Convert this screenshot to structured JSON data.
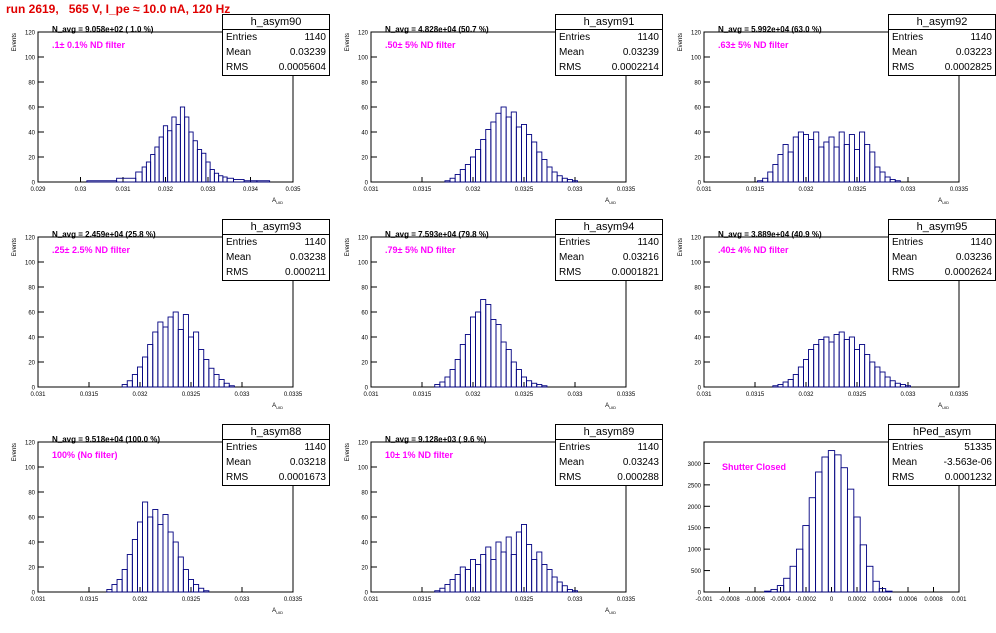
{
  "run_title": "run 2619,   565 V, I_pe ≈ 10.0 nA, 120 Hz",
  "colors": {
    "title": "#e00000",
    "histogram": "#000080",
    "annotation": "#ff00ff",
    "axis": "#000000"
  },
  "stat_labels": {
    "entries": "Entries",
    "mean": "Mean",
    "rms": "RMS"
  },
  "chart_data": [
    {
      "type": "histogram",
      "name": "h_asym90",
      "navg": "N_avg = 9.058e+02 ( 1.0 %)",
      "filter": ".1± 0.1% ND filter",
      "stats": {
        "entries": "1140",
        "mean": "0.03239",
        "rms": "0.0005604"
      },
      "ylabel": "Events",
      "xlabel": "A_UID",
      "xlim": [
        0.029,
        0.035
      ],
      "ylim": [
        0,
        120
      ],
      "xticks": [
        "0.029",
        "0.03",
        "0.031",
        "0.032",
        "0.033",
        "0.034",
        "0.035"
      ],
      "yticks": [
        "0",
        "20",
        "40",
        "60",
        "80",
        "100",
        "120"
      ],
      "bins": [
        0.0305,
        0.0312,
        0.0314,
        0.0315,
        0.0316,
        0.0317,
        0.0318,
        0.0319,
        0.032,
        0.0321,
        0.0322,
        0.0323,
        0.0324,
        0.0325,
        0.0326,
        0.0327,
        0.0328,
        0.0329,
        0.033,
        0.0331,
        0.0332,
        0.0333,
        0.0334,
        0.0335,
        0.0337,
        0.034,
        0.0343
      ],
      "counts": [
        1,
        3,
        8,
        12,
        16,
        22,
        28,
        36,
        45,
        41,
        52,
        46,
        60,
        52,
        40,
        33,
        26,
        23,
        16,
        10,
        7,
        5,
        4,
        3,
        2,
        1,
        1
      ]
    },
    {
      "type": "histogram",
      "name": "h_asym91",
      "navg": "N_avg = 4.828e+04 (50.7 %)",
      "filter": ".50± 5% ND filter",
      "stats": {
        "entries": "1140",
        "mean": "0.03239",
        "rms": "0.0002214"
      },
      "ylabel": "Events",
      "xlabel": "A_UID",
      "xlim": [
        0.031,
        0.0335
      ],
      "ylim": [
        0,
        120
      ],
      "xticks": [
        "0.031",
        "0.0315",
        "0.032",
        "0.0325",
        "0.033",
        "0.0335"
      ],
      "yticks": [
        "0",
        "20",
        "40",
        "60",
        "80",
        "100",
        "120"
      ],
      "bins": [
        0.03175,
        0.0318,
        0.03185,
        0.0319,
        0.03195,
        0.032,
        0.03205,
        0.0321,
        0.03215,
        0.0322,
        0.03225,
        0.0323,
        0.03235,
        0.0324,
        0.03245,
        0.0325,
        0.03255,
        0.0326,
        0.03265,
        0.0327,
        0.03275,
        0.0328,
        0.03285,
        0.0329,
        0.03295,
        0.033
      ],
      "counts": [
        1,
        3,
        6,
        10,
        14,
        20,
        26,
        34,
        42,
        48,
        55,
        60,
        52,
        56,
        44,
        46,
        38,
        32,
        24,
        18,
        12,
        8,
        5,
        3,
        2,
        1
      ]
    },
    {
      "type": "histogram",
      "name": "h_asym92",
      "navg": "N_avg = 5.992e+04 (63.0 %)",
      "filter": ".63± 5% ND filter",
      "stats": {
        "entries": "1140",
        "mean": "0.03223",
        "rms": "0.0002825"
      },
      "ylabel": "Events",
      "xlabel": "A_UID",
      "xlim": [
        0.031,
        0.0335
      ],
      "ylim": [
        0,
        120
      ],
      "xticks": [
        "0.031",
        "0.0315",
        "0.032",
        "0.0325",
        "0.033",
        "0.0335"
      ],
      "yticks": [
        "0",
        "20",
        "40",
        "60",
        "80",
        "100",
        "120"
      ],
      "bins": [
        0.03155,
        0.0316,
        0.03165,
        0.0317,
        0.03175,
        0.0318,
        0.03185,
        0.0319,
        0.03195,
        0.032,
        0.03205,
        0.0321,
        0.03215,
        0.0322,
        0.03225,
        0.0323,
        0.03235,
        0.0324,
        0.03245,
        0.0325,
        0.03255,
        0.0326,
        0.03265,
        0.0327,
        0.03275,
        0.0328,
        0.03285,
        0.0329
      ],
      "counts": [
        1,
        3,
        8,
        14,
        22,
        30,
        24,
        36,
        40,
        38,
        34,
        40,
        28,
        32,
        36,
        28,
        40,
        30,
        38,
        26,
        40,
        30,
        24,
        12,
        8,
        4,
        2,
        1
      ]
    },
    {
      "type": "histogram",
      "name": "h_asym93",
      "navg": "N_avg = 2.459e+04 (25.8 %)",
      "filter": ".25± 2.5% ND filter",
      "stats": {
        "entries": "1140",
        "mean": "0.03238",
        "rms": "0.000211"
      },
      "ylabel": "Events",
      "xlabel": "A_UID",
      "xlim": [
        0.031,
        0.0335
      ],
      "ylim": [
        0,
        120
      ],
      "xticks": [
        "0.031",
        "0.0315",
        "0.032",
        "0.0325",
        "0.033",
        "0.0335"
      ],
      "yticks": [
        "0",
        "20",
        "40",
        "60",
        "80",
        "100",
        "120"
      ],
      "bins": [
        0.03185,
        0.0319,
        0.03195,
        0.032,
        0.03205,
        0.0321,
        0.03215,
        0.0322,
        0.03225,
        0.0323,
        0.03235,
        0.0324,
        0.03245,
        0.0325,
        0.03255,
        0.0326,
        0.03265,
        0.0327,
        0.03275,
        0.0328,
        0.03285,
        0.0329
      ],
      "counts": [
        2,
        5,
        10,
        16,
        24,
        34,
        44,
        52,
        48,
        56,
        60,
        46,
        58,
        40,
        44,
        30,
        22,
        15,
        10,
        6,
        3,
        1
      ]
    },
    {
      "type": "histogram",
      "name": "h_asym94",
      "navg": "N_avg = 7.593e+04 (79.8 %)",
      "filter": ".79± 5% ND filter",
      "stats": {
        "entries": "1140",
        "mean": "0.03216",
        "rms": "0.0001821"
      },
      "ylabel": "Events",
      "xlabel": "A_UID",
      "xlim": [
        0.031,
        0.0335
      ],
      "ylim": [
        0,
        120
      ],
      "xticks": [
        "0.031",
        "0.0315",
        "0.032",
        "0.0325",
        "0.033",
        "0.0335"
      ],
      "yticks": [
        "0",
        "20",
        "40",
        "60",
        "80",
        "100",
        "120"
      ],
      "bins": [
        0.03165,
        0.0317,
        0.03175,
        0.0318,
        0.03185,
        0.0319,
        0.03195,
        0.032,
        0.03205,
        0.0321,
        0.03215,
        0.0322,
        0.03225,
        0.0323,
        0.03235,
        0.0324,
        0.03245,
        0.0325,
        0.03255,
        0.0326,
        0.03265,
        0.0327
      ],
      "counts": [
        2,
        4,
        8,
        14,
        22,
        34,
        42,
        56,
        60,
        70,
        66,
        54,
        50,
        36,
        30,
        20,
        14,
        8,
        5,
        3,
        2,
        1
      ]
    },
    {
      "type": "histogram",
      "name": "h_asym95",
      "navg": "N_avg = 3.889e+04 (40.9 %)",
      "filter": ".40± 4% ND filter",
      "stats": {
        "entries": "1140",
        "mean": "0.03236",
        "rms": "0.0002624"
      },
      "ylabel": "Events",
      "xlabel": "A_UID",
      "xlim": [
        0.031,
        0.0335
      ],
      "ylim": [
        0,
        120
      ],
      "xticks": [
        "0.031",
        "0.0315",
        "0.032",
        "0.0325",
        "0.033",
        "0.0335"
      ],
      "yticks": [
        "0",
        "20",
        "40",
        "60",
        "80",
        "100",
        "120"
      ],
      "bins": [
        0.0317,
        0.03175,
        0.0318,
        0.03185,
        0.0319,
        0.03195,
        0.032,
        0.03205,
        0.0321,
        0.03215,
        0.0322,
        0.03225,
        0.0323,
        0.03235,
        0.0324,
        0.03245,
        0.0325,
        0.03255,
        0.0326,
        0.03265,
        0.0327,
        0.03275,
        0.0328,
        0.03285,
        0.0329,
        0.03295,
        0.033
      ],
      "counts": [
        1,
        2,
        4,
        6,
        10,
        16,
        22,
        30,
        34,
        38,
        40,
        36,
        42,
        44,
        38,
        40,
        30,
        34,
        26,
        20,
        16,
        12,
        8,
        5,
        3,
        2,
        1
      ]
    },
    {
      "type": "histogram",
      "name": "h_asym88",
      "navg": "N_avg = 9.518e+04 (100.0 %)",
      "filter": "100% (No filter)",
      "stats": {
        "entries": "1140",
        "mean": "0.03218",
        "rms": "0.0001673"
      },
      "ylabel": "Events",
      "xlabel": "A_UID",
      "xlim": [
        0.031,
        0.0335
      ],
      "ylim": [
        0,
        120
      ],
      "xticks": [
        "0.031",
        "0.0315",
        "0.032",
        "0.0325",
        "0.033",
        "0.0335"
      ],
      "yticks": [
        "0",
        "20",
        "40",
        "60",
        "80",
        "100",
        "120"
      ],
      "bins": [
        0.0317,
        0.03175,
        0.0318,
        0.03185,
        0.0319,
        0.03195,
        0.032,
        0.03205,
        0.0321,
        0.03215,
        0.0322,
        0.03225,
        0.0323,
        0.03235,
        0.0324,
        0.03245,
        0.0325,
        0.03255,
        0.0326,
        0.03265
      ],
      "counts": [
        2,
        6,
        10,
        18,
        30,
        42,
        56,
        72,
        60,
        66,
        54,
        62,
        48,
        40,
        28,
        18,
        10,
        6,
        3,
        1
      ]
    },
    {
      "type": "histogram",
      "name": "h_asym89",
      "navg": "N_avg = 9.128e+03 ( 9.6 %)",
      "filter": "10± 1% ND filter",
      "stats": {
        "entries": "1140",
        "mean": "0.03243",
        "rms": "0.000288"
      },
      "ylabel": "Events",
      "xlabel": "A_UID",
      "xlim": [
        0.031,
        0.0335
      ],
      "ylim": [
        0,
        120
      ],
      "xticks": [
        "0.031",
        "0.0315",
        "0.032",
        "0.0325",
        "0.033",
        "0.0335"
      ],
      "yticks": [
        "0",
        "20",
        "40",
        "60",
        "80",
        "100",
        "120"
      ],
      "bins": [
        0.03165,
        0.0317,
        0.03175,
        0.0318,
        0.03185,
        0.0319,
        0.03195,
        0.032,
        0.03205,
        0.0321,
        0.03215,
        0.0322,
        0.03225,
        0.0323,
        0.03235,
        0.0324,
        0.03245,
        0.0325,
        0.03255,
        0.0326,
        0.03265,
        0.0327,
        0.03275,
        0.0328,
        0.03285,
        0.0329,
        0.03295,
        0.033
      ],
      "counts": [
        1,
        3,
        6,
        10,
        14,
        20,
        18,
        26,
        22,
        30,
        36,
        26,
        40,
        32,
        44,
        30,
        48,
        54,
        38,
        26,
        32,
        22,
        18,
        12,
        8,
        5,
        2,
        1
      ]
    },
    {
      "type": "histogram",
      "name": "hPed_asym",
      "navg": "",
      "filter": "Shutter Closed",
      "stats": {
        "entries": "51335",
        "mean": "-3.563e-06",
        "rms": "0.0001232"
      },
      "ylabel": "",
      "xlabel": "",
      "xlim": [
        -0.001,
        0.001
      ],
      "ylim": [
        0,
        3500
      ],
      "xticks": [
        "-0.001",
        "-0.0008",
        "-0.0006",
        "-0.0004",
        "-0.0002",
        "0",
        "0.0002",
        "0.0004",
        "0.0006",
        "0.0008",
        "0.001"
      ],
      "yticks": [
        "0",
        "500",
        "1000",
        "1500",
        "2000",
        "2500",
        "3000"
      ],
      "bins": [
        -0.0005,
        -0.00045,
        -0.0004,
        -0.00035,
        -0.0003,
        -0.00025,
        -0.0002,
        -0.00015,
        -0.0001,
        -5e-05,
        0,
        5e-05,
        0.0001,
        0.00015,
        0.0002,
        0.00025,
        0.0003,
        0.00035,
        0.0004,
        0.00045
      ],
      "counts": [
        20,
        60,
        150,
        320,
        600,
        1000,
        1550,
        2200,
        2800,
        3150,
        3300,
        3200,
        2900,
        2400,
        1750,
        1100,
        600,
        250,
        80,
        20
      ]
    }
  ]
}
